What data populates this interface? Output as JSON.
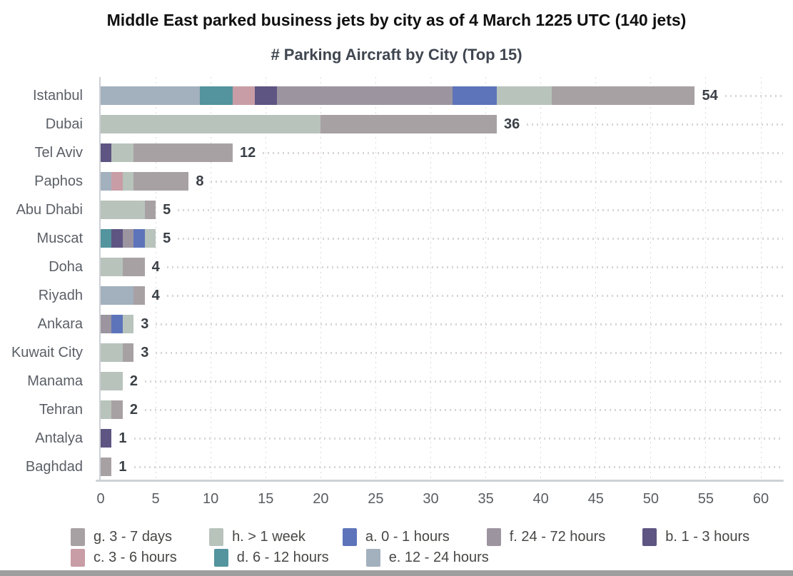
{
  "chart_data": {
    "type": "bar",
    "stacked": true,
    "orientation": "horizontal",
    "title": "Middle East parked business jets by city as of 4 March 1225 UTC (140 jets)",
    "subtitle": "# Parking Aircraft by City (Top 15)",
    "xlabel": "",
    "ylabel": "",
    "xlim": [
      0,
      60
    ],
    "xticks": [
      0,
      5,
      10,
      15,
      20,
      25,
      30,
      35,
      40,
      45,
      50,
      55,
      60
    ],
    "grid": "vertical dotted gridlines",
    "legend_position": "bottom",
    "total_jets": 140,
    "categories": [
      "Istanbul",
      "Dubai",
      "Tel Aviv",
      "Paphos",
      "Abu Dhabi",
      "Muscat",
      "Doha",
      "Riyadh",
      "Ankara",
      "Kuwait City",
      "Manama",
      "Tehran",
      "Antalya",
      "Baghdad"
    ],
    "totals": [
      54,
      36,
      12,
      8,
      5,
      5,
      4,
      4,
      3,
      3,
      2,
      2,
      1,
      1
    ],
    "series": [
      {
        "key": "e",
        "name": "e. 12 - 24 hours",
        "color": "#a3b0bd",
        "values": [
          9,
          0,
          0,
          1,
          0,
          0,
          0,
          3,
          0,
          0,
          0,
          0,
          0,
          0
        ]
      },
      {
        "key": "d",
        "name": "d. 6 - 12 hours",
        "color": "#53949e",
        "values": [
          3,
          0,
          0,
          0,
          0,
          1,
          0,
          0,
          0,
          0,
          0,
          0,
          0,
          0
        ]
      },
      {
        "key": "c",
        "name": "c. 3 - 6 hours",
        "color": "#c89da5",
        "values": [
          2,
          0,
          0,
          1,
          0,
          0,
          0,
          0,
          0,
          0,
          0,
          0,
          0,
          0
        ]
      },
      {
        "key": "b",
        "name": "b. 1 - 3 hours",
        "color": "#5e5583",
        "values": [
          2,
          0,
          1,
          0,
          0,
          1,
          0,
          0,
          0,
          0,
          0,
          0,
          1,
          0
        ]
      },
      {
        "key": "f",
        "name": "f. 24 - 72 hours",
        "color": "#9c95a0",
        "values": [
          16,
          0,
          0,
          0,
          0,
          1,
          0,
          0,
          1,
          0,
          0,
          0,
          0,
          0
        ]
      },
      {
        "key": "a",
        "name": "a. 0 - 1 hours",
        "color": "#5d74ba",
        "values": [
          4,
          0,
          0,
          0,
          0,
          1,
          0,
          0,
          1,
          0,
          0,
          0,
          0,
          0
        ]
      },
      {
        "key": "h",
        "name": "h. > 1 week",
        "color": "#b8c3bc",
        "values": [
          5,
          20,
          2,
          1,
          4,
          1,
          2,
          0,
          1,
          2,
          2,
          1,
          0,
          0
        ]
      },
      {
        "key": "g",
        "name": "g. 3 - 7 days",
        "color": "#a8a1a4",
        "values": [
          13,
          16,
          9,
          5,
          1,
          0,
          2,
          1,
          0,
          1,
          0,
          1,
          0,
          1
        ]
      }
    ],
    "legend_rows": [
      [
        {
          "label": "g. 3 - 7 days",
          "color": "#a8a1a4"
        },
        {
          "label": "h. > 1 week",
          "color": "#b8c3bc"
        },
        {
          "label": "a. 0 - 1 hours",
          "color": "#5d74ba"
        },
        {
          "label": "f. 24 - 72 hours",
          "color": "#9c95a0"
        },
        {
          "label": "b. 1 - 3 hours",
          "color": "#5e5583"
        }
      ],
      [
        {
          "label": "c. 3 - 6 hours",
          "color": "#c89da5"
        },
        {
          "label": "d. 6 - 12 hours",
          "color": "#53949e"
        },
        {
          "label": "e. 12 - 24 hours",
          "color": "#a3b0bd"
        }
      ]
    ]
  }
}
